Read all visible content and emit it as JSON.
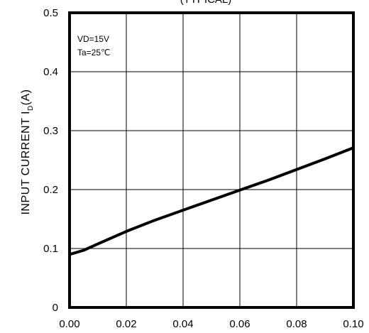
{
  "chart_data": {
    "type": "line",
    "title": "(TYPICAL)",
    "ylabel": {
      "main": "INPUT  CURRENT  I",
      "sub": "D",
      "unit": "(A)"
    },
    "xlabel": "",
    "xlim": [
      0,
      0.1
    ],
    "ylim": [
      0,
      0.5
    ],
    "x_ticks": [
      "0.00",
      "0.02",
      "0.04",
      "0.06",
      "0.08",
      "0.10"
    ],
    "y_ticks": [
      "0",
      "0.1",
      "0.2",
      "0.3",
      "0.4",
      "0.5"
    ],
    "grid": true,
    "annotations": [
      "VD=15V",
      "Ta=25℃"
    ],
    "series": [
      {
        "x": [
          0.0,
          0.005,
          0.01,
          0.02,
          0.03,
          0.04,
          0.05,
          0.06,
          0.07,
          0.08,
          0.09,
          0.1
        ],
        "y": [
          0.09,
          0.097,
          0.108,
          0.129,
          0.148,
          0.165,
          0.182,
          0.199,
          0.216,
          0.234,
          0.252,
          0.271
        ]
      }
    ]
  }
}
